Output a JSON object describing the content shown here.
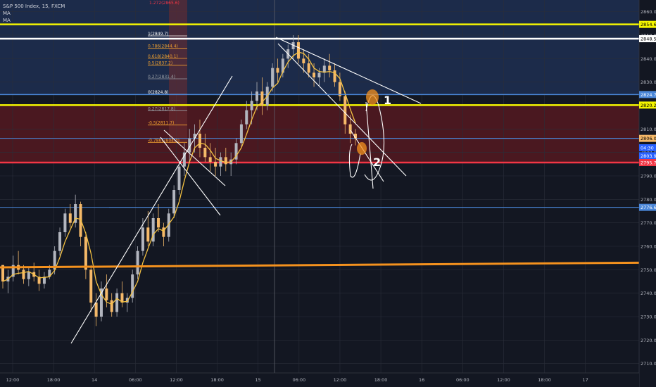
{
  "header": {
    "symbol_line": "S&P 500 Index, 15, FXCM",
    "indicators": [
      "MA",
      "MA"
    ]
  },
  "chart_data": {
    "type": "candlestick",
    "title": "S&P 500 Index, 15, FXCM",
    "ylim": [
      2706,
      2865
    ],
    "y_ticks": [
      2710,
      2720,
      2730,
      2740,
      2750,
      2760,
      2770,
      2780,
      2790,
      2800,
      2810,
      2820,
      2830,
      2840,
      2850,
      2860
    ],
    "y_tick_labels": [
      "2710.0",
      "2720.0",
      "2730.0",
      "2740.0",
      "2750.0",
      "2760.0",
      "2770.0",
      "2780.0",
      "2790.0",
      "2800.0",
      "2810.0",
      "2820.0",
      "2830.0",
      "2840.0",
      "2850.0",
      "2860.0"
    ],
    "x_ticks": [
      {
        "label": "12:00",
        "slot": 0.3
      },
      {
        "label": "18:00",
        "slot": 1.55
      },
      {
        "label": "14",
        "slot": 2.8
      },
      {
        "label": "06:00",
        "slot": 4.05
      },
      {
        "label": "12:00",
        "slot": 5.3
      },
      {
        "label": "18:00",
        "slot": 6.55
      },
      {
        "label": "15",
        "slot": 7.8
      },
      {
        "label": "06:00",
        "slot": 9.05
      },
      {
        "label": "12:00",
        "slot": 10.3
      },
      {
        "label": "18:00",
        "slot": 11.55
      },
      {
        "label": "16",
        "slot": 12.8
      },
      {
        "label": "06:00",
        "slot": 14.05
      },
      {
        "label": "12:00",
        "slot": 15.3
      },
      {
        "label": "18:00",
        "slot": 16.55
      },
      {
        "label": "17",
        "slot": 17.8
      }
    ],
    "price_levels": [
      {
        "label": "2854.6",
        "value": 2854.6,
        "color": "#f5f500",
        "width": 2.5,
        "tag_text": "#000000"
      },
      {
        "label": "2848.5",
        "value": 2848.5,
        "color": "#ffffff",
        "width": 2.5,
        "tag_text": "#000000"
      },
      {
        "label": "2824.7",
        "value": 2824.7,
        "color": "#4a86d8",
        "width": 1.5,
        "tag_text": "#ffffff"
      },
      {
        "label": "2820.2",
        "value": 2820.2,
        "color": "#f5f500",
        "width": 2.5,
        "tag_text": "#000000"
      },
      {
        "label": "2806.0",
        "value": 2806.0,
        "color": "#4a86d8",
        "width": 1,
        "tag_text": "#000000",
        "tag_bg": "#f5b969"
      },
      {
        "label": "04:30",
        "value": 2802.0,
        "color": null,
        "width": 0,
        "tag_text": "#ffffff",
        "tag_bg": "#2962ff"
      },
      {
        "label": "2803.9",
        "value": 2798.6,
        "color": null,
        "width": 0,
        "tag_text": "#ffffff",
        "tag_bg": "#2962ff"
      },
      {
        "label": "2795.7",
        "value": 2795.7,
        "color": "#f23645",
        "width": 2.5,
        "tag_text": "#ffffff"
      },
      {
        "label": "2776.6",
        "value": 2776.6,
        "color": "#4a86d8",
        "width": 1,
        "tag_text": "#ffffff"
      }
    ],
    "fib_levels": [
      {
        "label": "1(2849.7)",
        "value": 2849.7,
        "color": "#ffffff"
      },
      {
        "label": "0.786(2844.4)",
        "value": 2844.4,
        "color": "#f0a030"
      },
      {
        "label": "0.618(2840.1)",
        "value": 2840.1,
        "color": "#f0a030"
      },
      {
        "label": "0.5(2837.2)",
        "value": 2837.2,
        "color": "#f0a030"
      },
      {
        "label": "0.27(2831.4)",
        "value": 2831.4,
        "color": "#9aa0a6"
      },
      {
        "label": "0(2824.8)",
        "value": 2824.8,
        "color": "#ffffff"
      },
      {
        "label": "0.27(2817.8)",
        "value": 2817.8,
        "color": "#9aa0a6"
      },
      {
        "label": "-0.5(2811.7)",
        "value": 2811.7,
        "color": "#f0a030"
      },
      {
        "label": "-0.786(2804.3)",
        "value": 2804.3,
        "color": "#f0a030"
      }
    ],
    "fib_top_label": "1.272(2865.6)",
    "annotations": [
      "1",
      "2"
    ],
    "candles": [
      [
        2752,
        2752,
        2742,
        2745
      ],
      [
        2745,
        2750,
        2740,
        2747
      ],
      [
        2747,
        2756,
        2745,
        2752
      ],
      [
        2752,
        2758,
        2748,
        2750
      ],
      [
        2750,
        2752,
        2744,
        2746
      ],
      [
        2746,
        2751,
        2743,
        2749
      ],
      [
        2749,
        2753,
        2745,
        2747
      ],
      [
        2747,
        2750,
        2741,
        2744
      ],
      [
        2744,
        2749,
        2742,
        2747
      ],
      [
        2747,
        2752,
        2746,
        2750
      ],
      [
        2750,
        2760,
        2748,
        2758
      ],
      [
        2758,
        2768,
        2756,
        2766
      ],
      [
        2766,
        2776,
        2764,
        2774
      ],
      [
        2774,
        2778,
        2768,
        2770
      ],
      [
        2770,
        2782,
        2768,
        2778
      ],
      [
        2778,
        2779,
        2760,
        2764
      ],
      [
        2764,
        2766,
        2746,
        2750
      ],
      [
        2750,
        2752,
        2732,
        2736
      ],
      [
        2736,
        2740,
        2726,
        2730
      ],
      [
        2730,
        2745,
        2728,
        2742
      ],
      [
        2742,
        2748,
        2734,
        2737
      ],
      [
        2737,
        2740,
        2730,
        2732
      ],
      [
        2732,
        2742,
        2730,
        2740
      ],
      [
        2740,
        2745,
        2734,
        2736
      ],
      [
        2736,
        2740,
        2732,
        2738
      ],
      [
        2738,
        2750,
        2736,
        2748
      ],
      [
        2748,
        2760,
        2746,
        2758
      ],
      [
        2758,
        2772,
        2756,
        2768
      ],
      [
        2768,
        2775,
        2760,
        2762
      ],
      [
        2762,
        2774,
        2760,
        2772
      ],
      [
        2772,
        2778,
        2766,
        2768
      ],
      [
        2768,
        2770,
        2760,
        2764
      ],
      [
        2764,
        2776,
        2762,
        2774
      ],
      [
        2774,
        2786,
        2772,
        2784
      ],
      [
        2784,
        2796,
        2782,
        2794
      ],
      [
        2794,
        2804,
        2790,
        2800
      ],
      [
        2800,
        2810,
        2796,
        2806
      ],
      [
        2806,
        2812,
        2800,
        2808
      ],
      [
        2808,
        2814,
        2798,
        2802
      ],
      [
        2802,
        2808,
        2796,
        2798
      ],
      [
        2798,
        2804,
        2792,
        2796
      ],
      [
        2796,
        2802,
        2790,
        2794
      ],
      [
        2794,
        2800,
        2790,
        2798
      ],
      [
        2798,
        2802,
        2792,
        2795
      ],
      [
        2795,
        2800,
        2790,
        2797
      ],
      [
        2797,
        2806,
        2795,
        2804
      ],
      [
        2804,
        2814,
        2802,
        2812
      ],
      [
        2812,
        2822,
        2810,
        2818
      ],
      [
        2818,
        2826,
        2812,
        2822
      ],
      [
        2822,
        2830,
        2818,
        2826
      ],
      [
        2826,
        2832,
        2816,
        2820
      ],
      [
        2820,
        2830,
        2818,
        2828
      ],
      [
        2828,
        2838,
        2826,
        2836
      ],
      [
        2836,
        2840,
        2830,
        2834
      ],
      [
        2834,
        2842,
        2832,
        2840
      ],
      [
        2840,
        2846,
        2836,
        2844
      ],
      [
        2844,
        2850,
        2840,
        2847
      ],
      [
        2847,
        2850,
        2838,
        2840
      ],
      [
        2840,
        2844,
        2834,
        2838
      ],
      [
        2838,
        2842,
        2832,
        2834
      ],
      [
        2834,
        2838,
        2828,
        2832
      ],
      [
        2832,
        2836,
        2828,
        2834
      ],
      [
        2834,
        2840,
        2830,
        2837
      ],
      [
        2837,
        2842,
        2832,
        2835
      ],
      [
        2835,
        2838,
        2828,
        2830
      ],
      [
        2830,
        2834,
        2822,
        2824
      ],
      [
        2824,
        2826,
        2808,
        2812
      ],
      [
        2812,
        2816,
        2804,
        2808
      ],
      [
        2808,
        2810,
        2803,
        2806
      ]
    ]
  },
  "drawing_colors": {
    "zone_red": "#4a1820",
    "zone_blue": "#1c2b4a",
    "ma_long": "#f5921e",
    "trendline": "#ffffff",
    "marker": "#f5921e",
    "candle_up": "#b2b5be",
    "candle_down": "#f5b969"
  }
}
